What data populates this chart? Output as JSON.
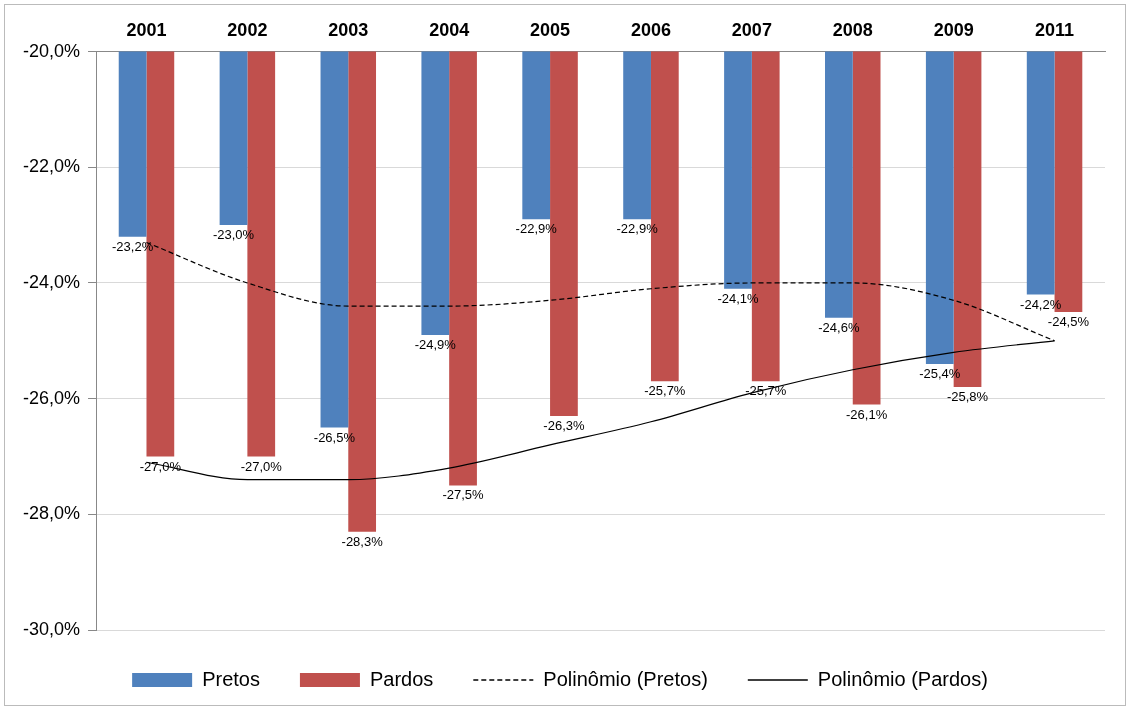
{
  "chart_data": {
    "type": "bar",
    "categories": [
      "2001",
      "2002",
      "2003",
      "2004",
      "2005",
      "2006",
      "2007",
      "2008",
      "2009",
      "2011"
    ],
    "series": [
      {
        "name": "Pretos",
        "color": "#4f81bd",
        "values": [
          -23.2,
          -23.0,
          -26.5,
          -24.9,
          -22.9,
          -22.9,
          -24.1,
          -24.6,
          -25.4,
          -24.2
        ],
        "value_labels": [
          "-23,2%",
          "-23,0%",
          "-26,5%",
          "-24,9%",
          "-22,9%",
          "-22,9%",
          "-24,1%",
          "-24,6%",
          "-25,4%",
          "-24,2%"
        ]
      },
      {
        "name": "Pardos",
        "color": "#c0504d",
        "values": [
          -27.0,
          -27.0,
          -28.3,
          -27.5,
          -26.3,
          -25.7,
          -25.7,
          -26.1,
          -25.8,
          -24.5
        ],
        "value_labels": [
          "-27,0%",
          "-27,0%",
          "-28,3%",
          "-27,5%",
          "-26,3%",
          "-25,7%",
          "-25,7%",
          "-26,1%",
          "-25,8%",
          "-24,5%"
        ]
      },
      {
        "name": "Polinômio (Pretos)",
        "type": "line",
        "color": "#000000",
        "line_style": "dashed",
        "marker": "none",
        "values": [
          -23.3,
          -24.0,
          -24.4,
          -24.4,
          -24.3,
          -24.1,
          -24.0,
          -24.0,
          -24.3,
          -25.0
        ]
      },
      {
        "name": "Polinômio (Pardos)",
        "type": "line",
        "color": "#000000",
        "line_style": "solid",
        "marker": "none",
        "values": [
          -27.1,
          -27.4,
          -27.4,
          -27.2,
          -26.8,
          -26.4,
          -25.9,
          -25.5,
          -25.2,
          -25.0
        ]
      }
    ],
    "ylim": [
      -30,
      -20
    ],
    "yticks": [
      {
        "value": -30,
        "label": "-30,0%"
      },
      {
        "value": -28,
        "label": "-28,0%"
      },
      {
        "value": -26,
        "label": "-26,0%"
      },
      {
        "value": -24,
        "label": "-24,0%"
      },
      {
        "value": -22,
        "label": "-22,0%"
      },
      {
        "value": -20,
        "label": "-20,0%"
      }
    ],
    "grid": "y",
    "legend": "bottom"
  }
}
